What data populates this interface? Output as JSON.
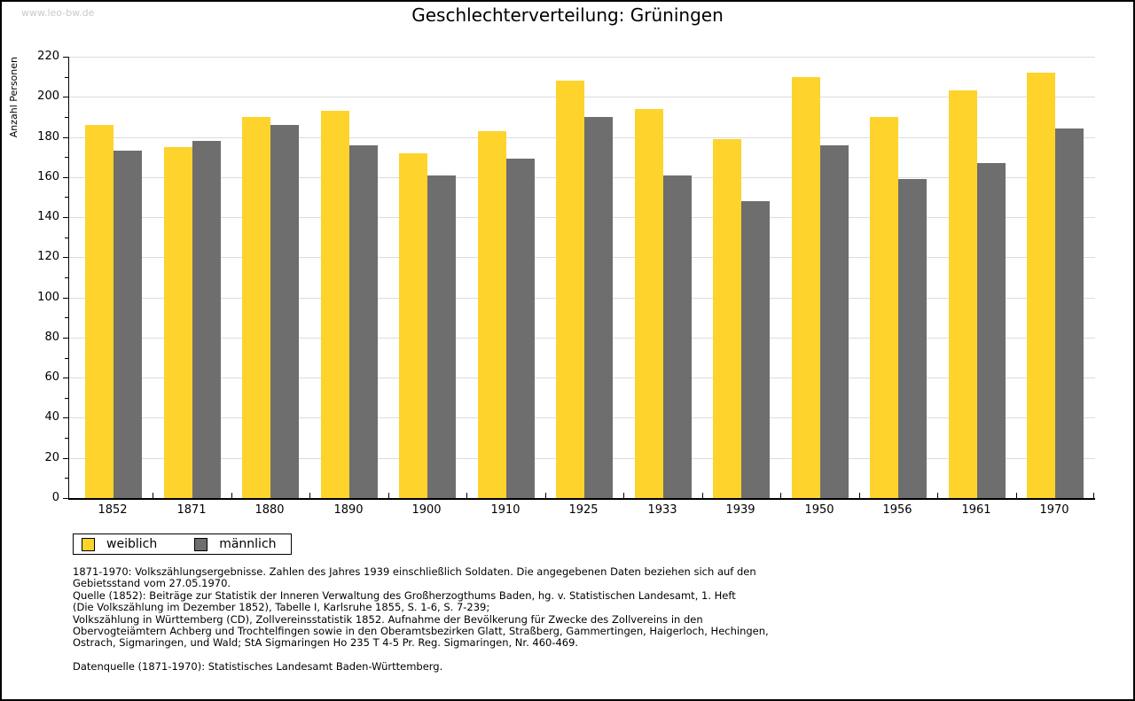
{
  "watermark": "www.leo-bw.de",
  "title": "Geschlechterverteilung: Grüningen",
  "chart_data": {
    "type": "bar",
    "title": "Geschlechterverteilung: Grüningen",
    "xlabel": "",
    "ylabel": "Anzahl Personen",
    "ylim": [
      0,
      220
    ],
    "ytick_step": 20,
    "yminor_step": 10,
    "yticks": [
      0,
      20,
      40,
      60,
      80,
      100,
      120,
      140,
      160,
      180,
      200,
      220
    ],
    "grid": true,
    "legend_position": "bottom-left",
    "categories": [
      "1852",
      "1871",
      "1880",
      "1890",
      "1900",
      "1910",
      "1925",
      "1933",
      "1939",
      "1950",
      "1956",
      "1961",
      "1970"
    ],
    "series": [
      {
        "name": "weiblich",
        "color": "#fdd32c",
        "values": [
          186,
          175,
          190,
          193,
          172,
          183,
          208,
          194,
          179,
          210,
          190,
          203,
          212
        ]
      },
      {
        "name": "männlich",
        "color": "#6e6e6e",
        "values": [
          173,
          178,
          186,
          176,
          161,
          169,
          190,
          161,
          148,
          176,
          159,
          167,
          184
        ]
      }
    ]
  },
  "colors": {
    "female_bar": "#fdd32c",
    "male_bar": "#6e6e6e",
    "gridline": "#dcdcdc",
    "axis": "#000000",
    "watermark": "#c9c9c9"
  },
  "footnotes": {
    "lines": [
      "1871-1970: Volkszählungsergebnisse. Zahlen des Jahres 1939 einschließlich Soldaten. Die angegebenen Daten beziehen sich auf den",
      "Gebietsstand vom 27.05.1970.",
      "Quelle (1852): Beiträge zur Statistik der Inneren Verwaltung des Großherzogthums Baden, hg. v. Statistischen Landesamt, 1. Heft",
      "(Die Volkszählung im Dezember 1852), Tabelle I, Karlsruhe 1855, S. 1-6, S. 7-239;",
      "Volkszählung in Württemberg (CD), Zollvereinsstatistik 1852. Aufnahme der Bevölkerung für Zwecke des Zollvereins in den",
      "Obervogteiämtern Achberg und Trochtelfingen sowie in den Oberamtsbezirken Glatt, Straßberg, Gammertingen, Haigerloch, Hechingen,",
      "Ostrach, Sigmaringen, und Wald; StA Sigmaringen Ho 235 T 4-5 Pr. Reg. Sigmaringen, Nr. 460-469."
    ],
    "datasource": "Datenquelle (1871-1970): Statistisches Landesamt Baden-Württemberg."
  }
}
